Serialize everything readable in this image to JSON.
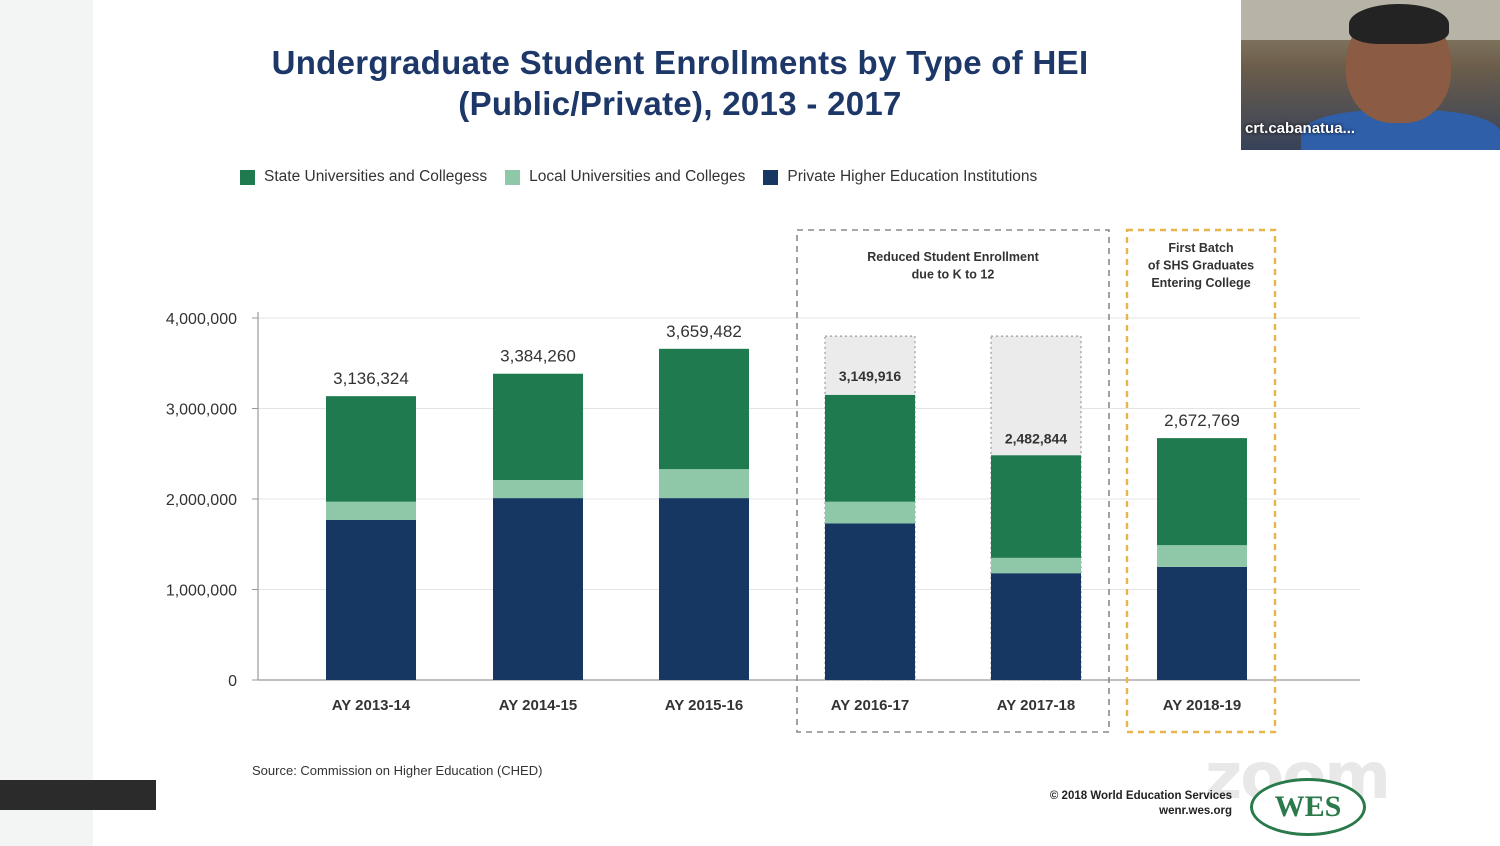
{
  "slide": {
    "title_line1": "Undergraduate Student Enrollments by Type of HEI",
    "title_line2": "(Public/Private), 2013 - 2017",
    "source": "Source: Commission on Higher Education (CHED)",
    "copyright_line1": "© 2018 World Education Services",
    "copyright_line2": "wenr.wes.org",
    "logo_text": "WES",
    "watermark": "zoom"
  },
  "video": {
    "participant_name": "crt.cabanatua..."
  },
  "colors": {
    "suc": "#1f7a4f",
    "luc": "#8ec8a8",
    "private": "#173763",
    "ghost": "#ecebeb",
    "gray_box": "#8a8a8a",
    "gold_box": "#e8b54a",
    "title": "#1c3768"
  },
  "chart_data": {
    "type": "bar",
    "stacked": true,
    "categories": [
      "AY 2013-14",
      "AY 2014-15",
      "AY 2015-16",
      "AY 2016-17",
      "AY 2017-18",
      "AY 2018-19"
    ],
    "series": [
      {
        "name": "Private Higher Education Institutions",
        "color_key": "private",
        "values": [
          1770000,
          2010000,
          2010000,
          1730000,
          1180000,
          1250000
        ]
      },
      {
        "name": "Local Universities and Colleges",
        "color_key": "luc",
        "values": [
          200000,
          200000,
          320000,
          240000,
          170000,
          240000
        ]
      },
      {
        "name": "State Universities and Collegess",
        "color_key": "suc",
        "values": [
          1166324,
          1174260,
          1329482,
          1179916,
          1132844,
          1182769
        ]
      }
    ],
    "legend_order": [
      "State Universities and Collegess",
      "Local Universities and Colleges",
      "Private Higher Education Institutions"
    ],
    "legend_colors": [
      "suc",
      "luc",
      "private"
    ],
    "totals": [
      "3,136,324",
      "3,384,260",
      "3,659,482",
      "3,149,916",
      "2,482,844",
      "2,672,769"
    ],
    "ghost_tops": [
      null,
      null,
      null,
      3800000,
      3800000,
      null
    ],
    "y_ticks": [
      0,
      1000000,
      2000000,
      3000000,
      4000000
    ],
    "y_tick_labels": [
      "0",
      "1,000,000",
      "2,000,000",
      "3,000,000",
      "4,000,000"
    ],
    "ylim": [
      0,
      4000000
    ],
    "annotations": [
      {
        "text_lines": [
          "Reduced Student Enrollment",
          "due  to K to 12"
        ],
        "categories": [
          3,
          4
        ],
        "style": "gray"
      },
      {
        "text_lines": [
          "First Batch",
          "of SHS Graduates",
          "Entering College"
        ],
        "categories": [
          5
        ],
        "style": "gold"
      }
    ]
  }
}
